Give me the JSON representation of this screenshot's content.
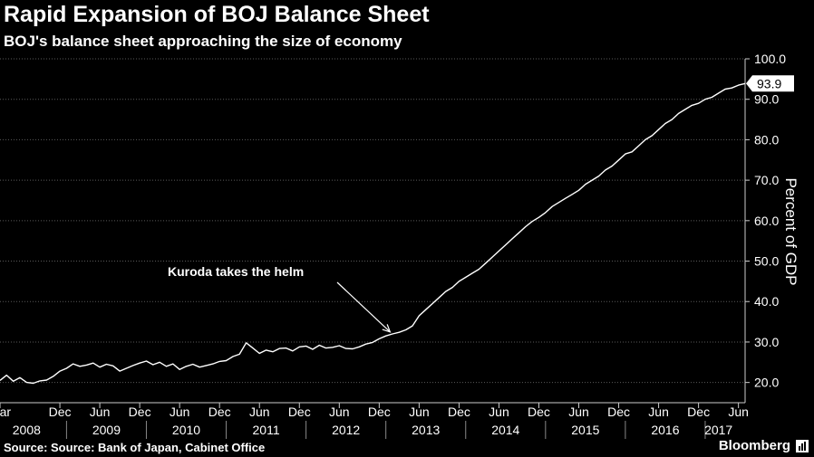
{
  "header": {
    "title": "Rapid Expansion of BOJ Balance Sheet",
    "subtitle": "BOJ's balance sheet approaching the size of economy"
  },
  "footer": {
    "source": "Source: Source: Bank of Japan, Cabinet Office",
    "brand": "Bloomberg",
    "brand_icon": "bar-chart-icon"
  },
  "colors": {
    "background": "#000000",
    "line": "#ffffff",
    "grid": "#666666"
  },
  "chart_data": {
    "type": "line",
    "title": "Rapid Expansion of BOJ Balance Sheet",
    "subtitle": "BOJ's balance sheet approaching the size of economy",
    "ylabel": "Percent of GDP",
    "xlabel": "",
    "ylim": [
      15,
      100
    ],
    "y_ticks": [
      20.0,
      30.0,
      40.0,
      50.0,
      60.0,
      70.0,
      80.0,
      90.0,
      100.0
    ],
    "y_tick_labels": [
      "20.0",
      "30.0",
      "40.0",
      "50.0",
      "60.0",
      "70.0",
      "80.0",
      "90.0",
      "100.0"
    ],
    "y_axis_position": "right",
    "grid": "horizontal dotted",
    "x_range": [
      "2008-03",
      "2017-07"
    ],
    "x_month_ticks": [
      {
        "date": "2008-03",
        "label": "Mar"
      },
      {
        "date": "2008-12",
        "label": "Dec"
      },
      {
        "date": "2009-06",
        "label": "Jun"
      },
      {
        "date": "2009-12",
        "label": "Dec"
      },
      {
        "date": "2010-06",
        "label": "Jun"
      },
      {
        "date": "2010-12",
        "label": "Dec"
      },
      {
        "date": "2011-06",
        "label": "Jun"
      },
      {
        "date": "2011-12",
        "label": "Dec"
      },
      {
        "date": "2012-06",
        "label": "Jun"
      },
      {
        "date": "2012-12",
        "label": "Dec"
      },
      {
        "date": "2013-06",
        "label": "Jun"
      },
      {
        "date": "2013-12",
        "label": "Dec"
      },
      {
        "date": "2014-06",
        "label": "Jun"
      },
      {
        "date": "2014-12",
        "label": "Dec"
      },
      {
        "date": "2015-06",
        "label": "Jun"
      },
      {
        "date": "2015-12",
        "label": "Dec"
      },
      {
        "date": "2016-06",
        "label": "Jun"
      },
      {
        "date": "2016-12",
        "label": "Dec"
      },
      {
        "date": "2017-06",
        "label": "Jun"
      }
    ],
    "x_year_labels": [
      {
        "date": "2008-07",
        "label": "2008"
      },
      {
        "date": "2009-07",
        "label": "2009"
      },
      {
        "date": "2010-07",
        "label": "2010"
      },
      {
        "date": "2011-07",
        "label": "2011"
      },
      {
        "date": "2012-07",
        "label": "2012"
      },
      {
        "date": "2013-07",
        "label": "2013"
      },
      {
        "date": "2014-07",
        "label": "2014"
      },
      {
        "date": "2015-07",
        "label": "2015"
      },
      {
        "date": "2016-07",
        "label": "2016"
      },
      {
        "date": "2017-03",
        "label": "2017"
      }
    ],
    "series": [
      {
        "x": [
          "2008-03",
          "2008-04",
          "2008-05",
          "2008-06",
          "2008-07",
          "2008-08",
          "2008-09",
          "2008-10",
          "2008-11",
          "2008-12",
          "2009-01",
          "2009-02",
          "2009-03",
          "2009-04",
          "2009-05",
          "2009-06",
          "2009-07",
          "2009-08",
          "2009-09",
          "2009-10",
          "2009-11",
          "2009-12",
          "2010-01",
          "2010-02",
          "2010-03",
          "2010-04",
          "2010-05",
          "2010-06",
          "2010-07",
          "2010-08",
          "2010-09",
          "2010-10",
          "2010-11",
          "2010-12",
          "2011-01",
          "2011-02",
          "2011-03",
          "2011-04",
          "2011-05",
          "2011-06",
          "2011-07",
          "2011-08",
          "2011-09",
          "2011-10",
          "2011-11",
          "2011-12",
          "2012-01",
          "2012-02",
          "2012-03",
          "2012-04",
          "2012-05",
          "2012-06",
          "2012-07",
          "2012-08",
          "2012-09",
          "2012-10",
          "2012-11",
          "2012-12",
          "2013-01",
          "2013-02",
          "2013-03",
          "2013-04",
          "2013-05",
          "2013-06",
          "2013-07",
          "2013-08",
          "2013-09",
          "2013-10",
          "2013-11",
          "2013-12",
          "2014-01",
          "2014-02",
          "2014-03",
          "2014-04",
          "2014-05",
          "2014-06",
          "2014-07",
          "2014-08",
          "2014-09",
          "2014-10",
          "2014-11",
          "2014-12",
          "2015-01",
          "2015-02",
          "2015-03",
          "2015-04",
          "2015-05",
          "2015-06",
          "2015-07",
          "2015-08",
          "2015-09",
          "2015-10",
          "2015-11",
          "2015-12",
          "2016-01",
          "2016-02",
          "2016-03",
          "2016-04",
          "2016-05",
          "2016-06",
          "2016-07",
          "2016-08",
          "2016-09",
          "2016-10",
          "2016-11",
          "2016-12",
          "2017-01",
          "2017-02",
          "2017-03",
          "2017-04",
          "2017-05",
          "2017-06",
          "2017-07"
        ],
        "values": [
          20.5,
          21.8,
          20.3,
          21.2,
          20.0,
          19.8,
          20.4,
          20.6,
          21.5,
          22.8,
          23.5,
          24.6,
          24.0,
          24.3,
          24.8,
          23.8,
          24.5,
          24.1,
          22.8,
          23.5,
          24.2,
          24.8,
          25.3,
          24.4,
          25.0,
          24.0,
          24.6,
          23.2,
          24.0,
          24.5,
          23.8,
          24.2,
          24.6,
          25.2,
          25.4,
          26.4,
          27.0,
          29.8,
          28.5,
          27.2,
          28.0,
          27.6,
          28.4,
          28.5,
          27.8,
          28.8,
          29.0,
          28.2,
          29.2,
          28.5,
          28.7,
          29.1,
          28.4,
          28.3,
          28.8,
          29.5,
          29.9,
          30.8,
          31.5,
          32.0,
          32.4,
          33.0,
          34.0,
          36.5,
          38.0,
          39.5,
          41.0,
          42.5,
          43.5,
          45.0,
          46.0,
          47.0,
          48.0,
          49.5,
          51.0,
          52.5,
          54.0,
          55.5,
          57.0,
          58.5,
          59.8,
          60.8,
          62.0,
          63.5,
          64.5,
          65.5,
          66.5,
          67.5,
          69.0,
          70.0,
          71.0,
          72.5,
          73.5,
          75.0,
          76.5,
          77.0,
          78.5,
          80.0,
          81.0,
          82.5,
          84.0,
          85.0,
          86.5,
          87.5,
          88.5,
          89.0,
          90.0,
          90.5,
          91.5,
          92.5,
          92.8,
          93.5,
          93.9
        ]
      }
    ],
    "last_value_label": "93.9",
    "annotations": [
      {
        "text": "Kuroda takes the helm",
        "target_date": "2013-03",
        "target_value": 32.5
      }
    ]
  }
}
